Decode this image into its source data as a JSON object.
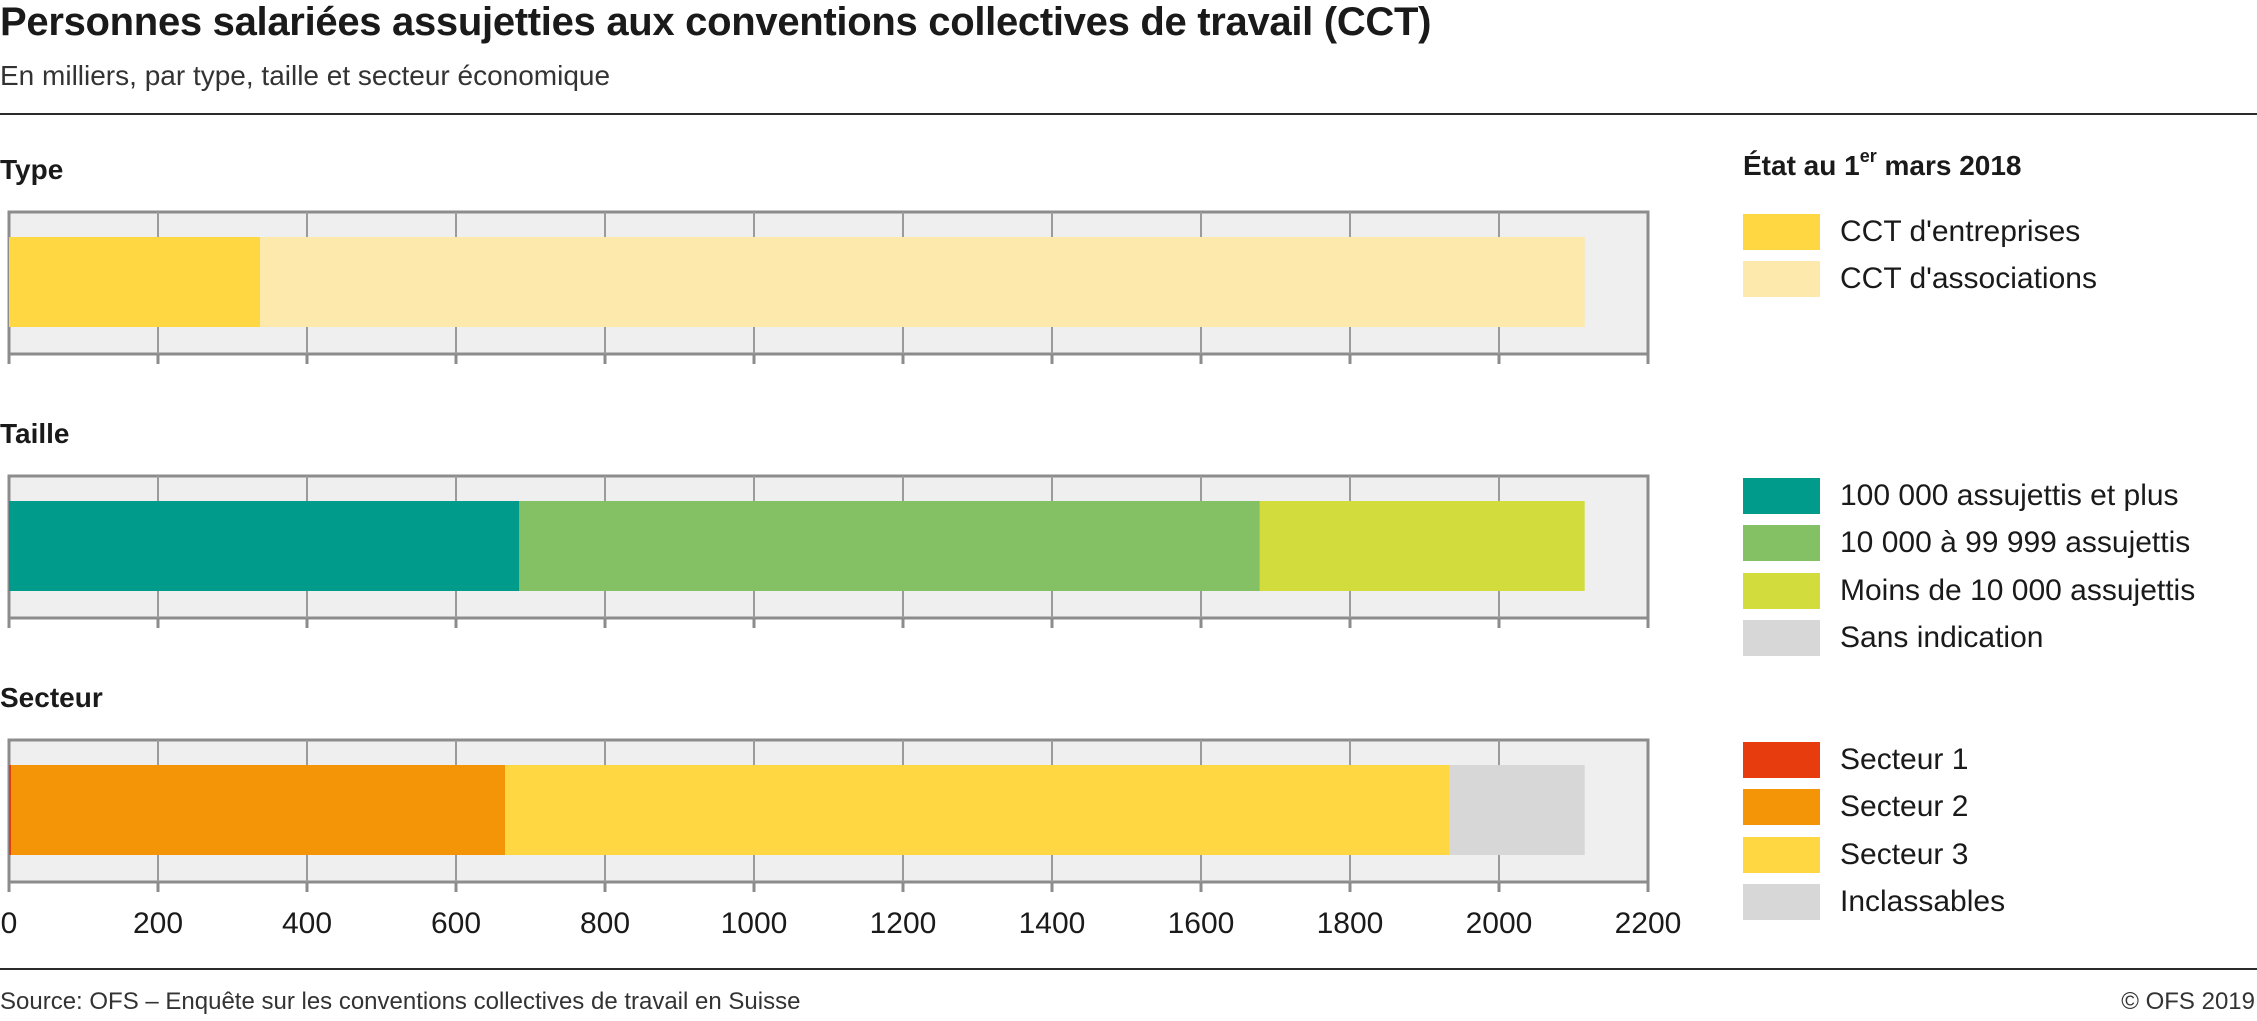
{
  "header": {
    "title": "Personnes salariées assujetties aux conventions collectives de travail (CCT)",
    "subtitle": "En milliers, par type, taille et secteur économique"
  },
  "footer": {
    "source": "Source: OFS – Enquête sur les conventions collectives de travail en Suisse",
    "copyright": "© OFS 2019"
  },
  "legend": {
    "title_prefix": "État au 1",
    "title_sup": "er",
    "title_suffix": " mars 2018",
    "groups": [
      {
        "items": [
          {
            "label": "CCT d'entreprises",
            "color": "#ffd743"
          },
          {
            "label": "CCT d'associations",
            "color": "#fde9ab"
          }
        ]
      },
      {
        "items": [
          {
            "label": "100 000 assujettis et plus",
            "color": "#009b8b"
          },
          {
            "label": "10 000 à 99 999 assujettis",
            "color": "#84c064"
          },
          {
            "label": "Moins de 10 000 assujettis",
            "color": "#d2dc3d"
          },
          {
            "label": "Sans indication",
            "color": "#d6d7d6"
          }
        ]
      },
      {
        "items": [
          {
            "label": "Secteur 1",
            "color": "#e73c0e"
          },
          {
            "label": "Secteur 2",
            "color": "#f39506"
          },
          {
            "label": "Secteur 3",
            "color": "#ffd743"
          },
          {
            "label": "Inclassables",
            "color": "#d6d7d6"
          }
        ]
      }
    ]
  },
  "chart_data": {
    "type": "bar",
    "orientation": "horizontal",
    "stacked": true,
    "xlim": [
      0,
      2200
    ],
    "xticks": [
      0,
      200,
      400,
      600,
      800,
      1000,
      1200,
      1400,
      1600,
      1800,
      2000,
      2200
    ],
    "xtick_labels": [
      "0",
      "200",
      "400",
      "600",
      "800",
      "1000",
      "1200",
      "1400",
      "1600",
      "1800",
      "2000",
      "2200"
    ],
    "grid": true,
    "legend_position": "right",
    "panels": [
      {
        "label": "Type",
        "segments": [
          {
            "name": "CCT d'entreprises",
            "value": 337,
            "color": "#ffd743"
          },
          {
            "name": "CCT d'associations",
            "value": 1778,
            "color": "#fde9ab"
          }
        ]
      },
      {
        "label": "Taille",
        "segments": [
          {
            "name": "100 000 assujettis et plus",
            "value": 685,
            "color": "#009b8b"
          },
          {
            "name": "10 000 à 99 999 assujettis",
            "value": 994,
            "color": "#84c064"
          },
          {
            "name": "Moins de 10 000 assujettis",
            "value": 436,
            "color": "#d2dc3d"
          },
          {
            "name": "Sans indication",
            "value": 0,
            "color": "#d6d7d6"
          }
        ]
      },
      {
        "label": "Secteur",
        "segments": [
          {
            "name": "Secteur 1",
            "value": 3,
            "color": "#e73c0e"
          },
          {
            "name": "Secteur 2",
            "value": 663,
            "color": "#f39506"
          },
          {
            "name": "Secteur 3",
            "value": 1268,
            "color": "#ffd743"
          },
          {
            "name": "Inclassables",
            "value": 181,
            "color": "#d6d7d6"
          }
        ]
      }
    ]
  }
}
